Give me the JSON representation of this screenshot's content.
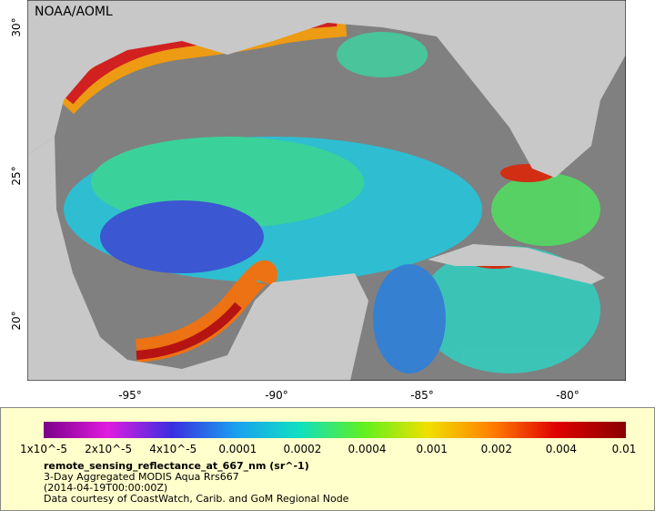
{
  "map": {
    "credit": "NOAA/AOML",
    "lat_labels": [
      "30°",
      "25°",
      "20°"
    ],
    "lon_labels": [
      "-95°",
      "-90°",
      "-85°",
      "-80°"
    ]
  },
  "legend": {
    "tick_labels": [
      "1x10^-5",
      "2x10^-5",
      "4x10^-5",
      "0.0001",
      "0.0002",
      "0.0004",
      "0.001",
      "0.002",
      "0.004",
      "0.01"
    ],
    "title": "remote_sensing_reflectance_at_667_nm (sr^-1)",
    "lines": [
      "3-Day Aggregated MODIS Aqua Rrs667",
      "(2014-04-19T00:00:00Z)",
      "Data courtesy of CoastWatch, Carib. and GoM Regional Node"
    ]
  }
}
